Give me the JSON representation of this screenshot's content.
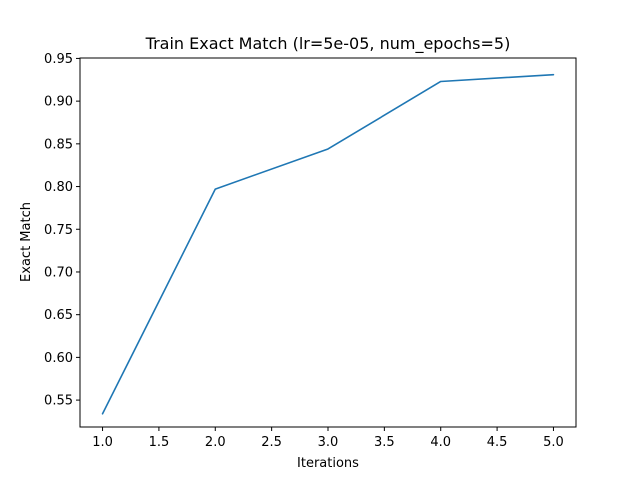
{
  "chart_data": {
    "type": "line",
    "title": "Train Exact Match (lr=5e-05, num_epochs=5)",
    "xlabel": "Iterations",
    "ylabel": "Exact Match",
    "xlim": [
      0.8,
      5.2
    ],
    "ylim": [
      0.5185,
      0.9505
    ],
    "xticks": [
      "1.0",
      "1.5",
      "2.0",
      "2.5",
      "3.0",
      "3.5",
      "4.0",
      "4.5",
      "5.0"
    ],
    "yticks": [
      "0.55",
      "0.60",
      "0.65",
      "0.70",
      "0.75",
      "0.80",
      "0.85",
      "0.90",
      "0.95"
    ],
    "grid": false,
    "series": [
      {
        "color": "#1f77b4",
        "x": [
          1.0,
          2.0,
          3.0,
          4.0,
          5.0
        ],
        "y": [
          0.534,
          0.797,
          0.844,
          0.923,
          0.931
        ]
      }
    ]
  }
}
